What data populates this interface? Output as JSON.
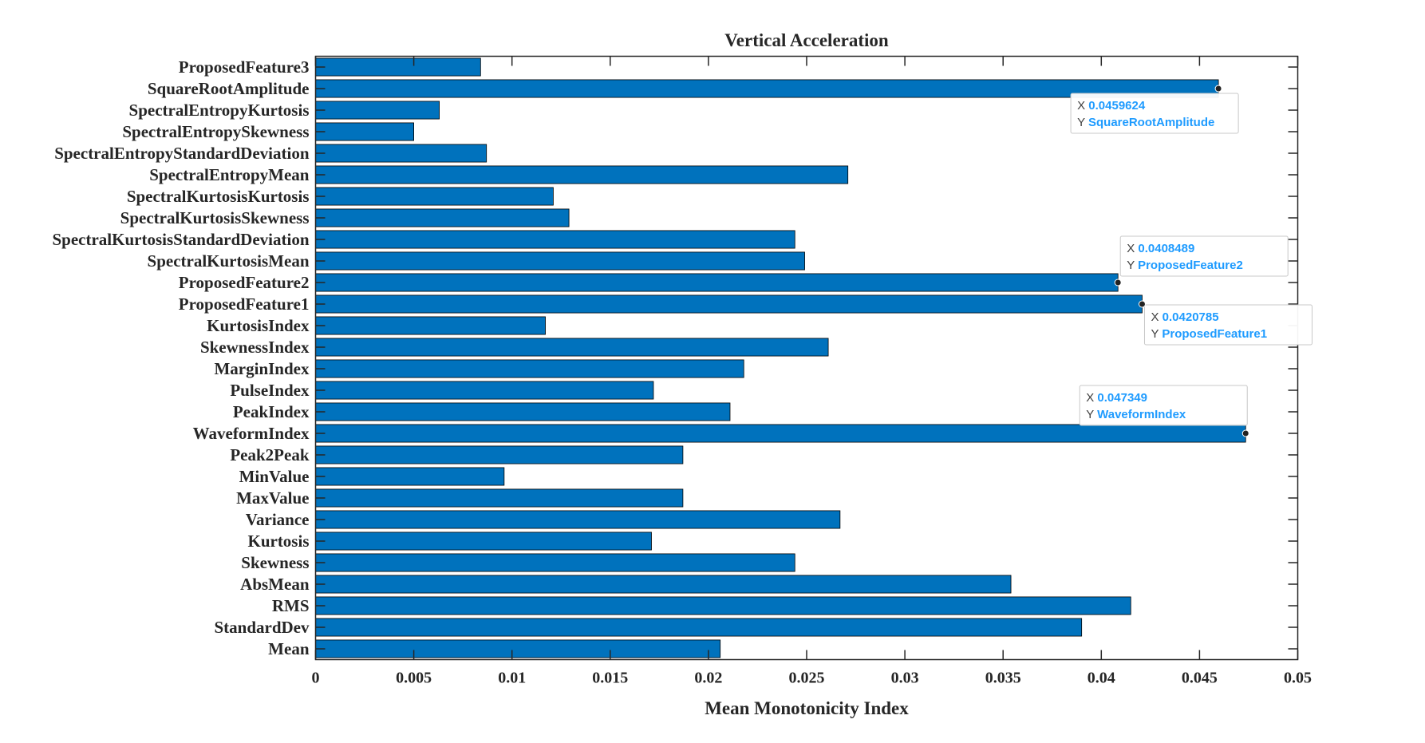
{
  "chart_data": {
    "type": "bar",
    "orientation": "horizontal",
    "title": "Vertical Acceleration",
    "xlabel": "Mean Monotonicity Index",
    "ylabel": "",
    "xlim": [
      0,
      0.05
    ],
    "xticks": [
      "0",
      "0.005",
      "0.01",
      "0.015",
      "0.02",
      "0.025",
      "0.03",
      "0.035",
      "0.04",
      "0.045",
      "0.05"
    ],
    "categories": [
      "ProposedFeature3",
      "SquareRootAmplitude",
      "SpectralEntropyKurtosis",
      "SpectralEntropySkewness",
      "SpectralEntropyStandardDeviation",
      "SpectralEntropyMean",
      "SpectralKurtosisKurtosis",
      "SpectralKurtosisSkewness",
      "SpectralKurtosisStandardDeviation",
      "SpectralKurtosisMean",
      "ProposedFeature2",
      "ProposedFeature1",
      "KurtosisIndex",
      "SkewnessIndex",
      "MarginIndex",
      "PulseIndex",
      "PeakIndex",
      "WaveformIndex",
      "Peak2Peak",
      "MinValue",
      "MaxValue",
      "Variance",
      "Kurtosis",
      "Skewness",
      "AbsMean",
      "RMS",
      "StandardDev",
      "Mean"
    ],
    "values": [
      0.0084,
      0.0459624,
      0.0063,
      0.005,
      0.0087,
      0.0271,
      0.0121,
      0.0129,
      0.0244,
      0.0249,
      0.0408489,
      0.0420785,
      0.0117,
      0.0261,
      0.0218,
      0.0172,
      0.0211,
      0.047349,
      0.0187,
      0.0096,
      0.0187,
      0.0267,
      0.0171,
      0.0244,
      0.0354,
      0.0415,
      0.039,
      0.0206
    ],
    "bar_color": "#0072BD",
    "grid": false,
    "datatips": [
      {
        "category": "SquareRootAmplitude",
        "x_prefix": "X",
        "x_text": "0.0459624",
        "y_prefix": "Y",
        "y_text": "SquareRootAmplitude"
      },
      {
        "category": "ProposedFeature2",
        "x_prefix": "X",
        "x_text": "0.0408489",
        "y_prefix": "Y",
        "y_text": "ProposedFeature2"
      },
      {
        "category": "ProposedFeature1",
        "x_prefix": "X",
        "x_text": "0.0420785",
        "y_prefix": "Y",
        "y_text": "ProposedFeature1"
      },
      {
        "category": "WaveformIndex",
        "x_prefix": "X",
        "x_text": "0.047349",
        "y_prefix": "Y",
        "y_text": "WaveformIndex"
      }
    ]
  }
}
